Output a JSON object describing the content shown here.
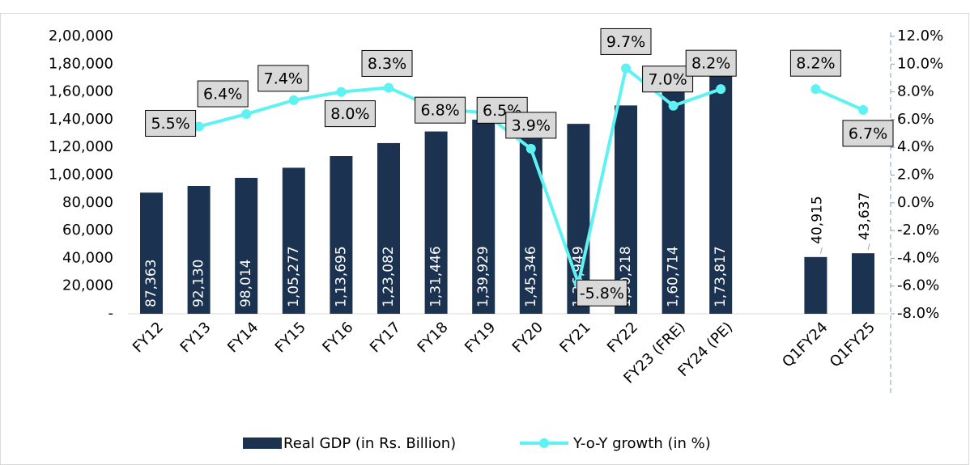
{
  "chart_data": {
    "type": "bar_line",
    "categories": [
      "FY12",
      "FY13",
      "FY14",
      "FY15",
      "FY16",
      "FY17",
      "FY18",
      "FY19",
      "FY20",
      "FY21",
      "FY22",
      "FY23 (FRE)",
      "FY24 (PE)",
      null,
      "Q1FY24",
      "Q1FY25"
    ],
    "series": [
      {
        "name": "Real GDP (in Rs. Billion)",
        "color": "#1b3350",
        "type": "bar",
        "values": [
          87363,
          92130,
          98014,
          105277,
          113695,
          123082,
          131446,
          139929,
          145346,
          136949,
          150218,
          160714,
          173817,
          null,
          40915,
          43637
        ],
        "value_labels": [
          "87,363",
          "92,130",
          "98,014",
          "1,05,277",
          "1,13,695",
          "1,23,082",
          "1,31,446",
          "1,39,929",
          "1,45,346",
          "1,36,949",
          "1,50,218",
          "1,60,714",
          "1,73,817",
          null,
          "40,915",
          "43,637"
        ]
      },
      {
        "name": "Y-o-Y growth (in %)",
        "color": "#5ef2f2",
        "type": "line",
        "axis": "y2",
        "values": [
          null,
          5.5,
          6.4,
          7.4,
          8.0,
          8.3,
          6.8,
          6.5,
          3.9,
          -5.8,
          9.7,
          7.0,
          8.2,
          null,
          8.2,
          6.7
        ],
        "value_labels": [
          null,
          "5.5%",
          "6.4%",
          "7.4%",
          "8.0%",
          "8.3%",
          "6.8%",
          "6.5%",
          "3.9%",
          "-5.8%",
          "9.7%",
          "7.0%",
          "8.2%",
          null,
          "8.2%",
          "6.7%"
        ]
      }
    ],
    "ylim": [
      0,
      200000
    ],
    "yticks": [
      {
        "value": 0,
        "label": "-"
      },
      {
        "value": 20000,
        "label": "20,000"
      },
      {
        "value": 40000,
        "label": "40,000"
      },
      {
        "value": 60000,
        "label": "60,000"
      },
      {
        "value": 80000,
        "label": "80,000"
      },
      {
        "value": 100000,
        "label": "1,00,000"
      },
      {
        "value": 120000,
        "label": "1,20,000"
      },
      {
        "value": 140000,
        "label": "1,40,000"
      },
      {
        "value": 160000,
        "label": "1,60,000"
      },
      {
        "value": 180000,
        "label": "1,80,000"
      },
      {
        "value": 200000,
        "label": "2,00,000"
      }
    ],
    "y2lim": [
      -8,
      12
    ],
    "y2ticks": [
      {
        "value": -8,
        "label": "-8.0%"
      },
      {
        "value": -6,
        "label": "-6.0%"
      },
      {
        "value": -4,
        "label": "-4.0%"
      },
      {
        "value": -2,
        "label": "-2.0%"
      },
      {
        "value": 0,
        "label": "0.0%"
      },
      {
        "value": 2,
        "label": "2.0%"
      },
      {
        "value": 4,
        "label": "4.0%"
      },
      {
        "value": 6,
        "label": "6.0%"
      },
      {
        "value": 8,
        "label": "8.0%"
      },
      {
        "value": 10,
        "label": "10.0%"
      },
      {
        "value": 12,
        "label": "12.0%"
      }
    ],
    "legend": "bottom"
  }
}
